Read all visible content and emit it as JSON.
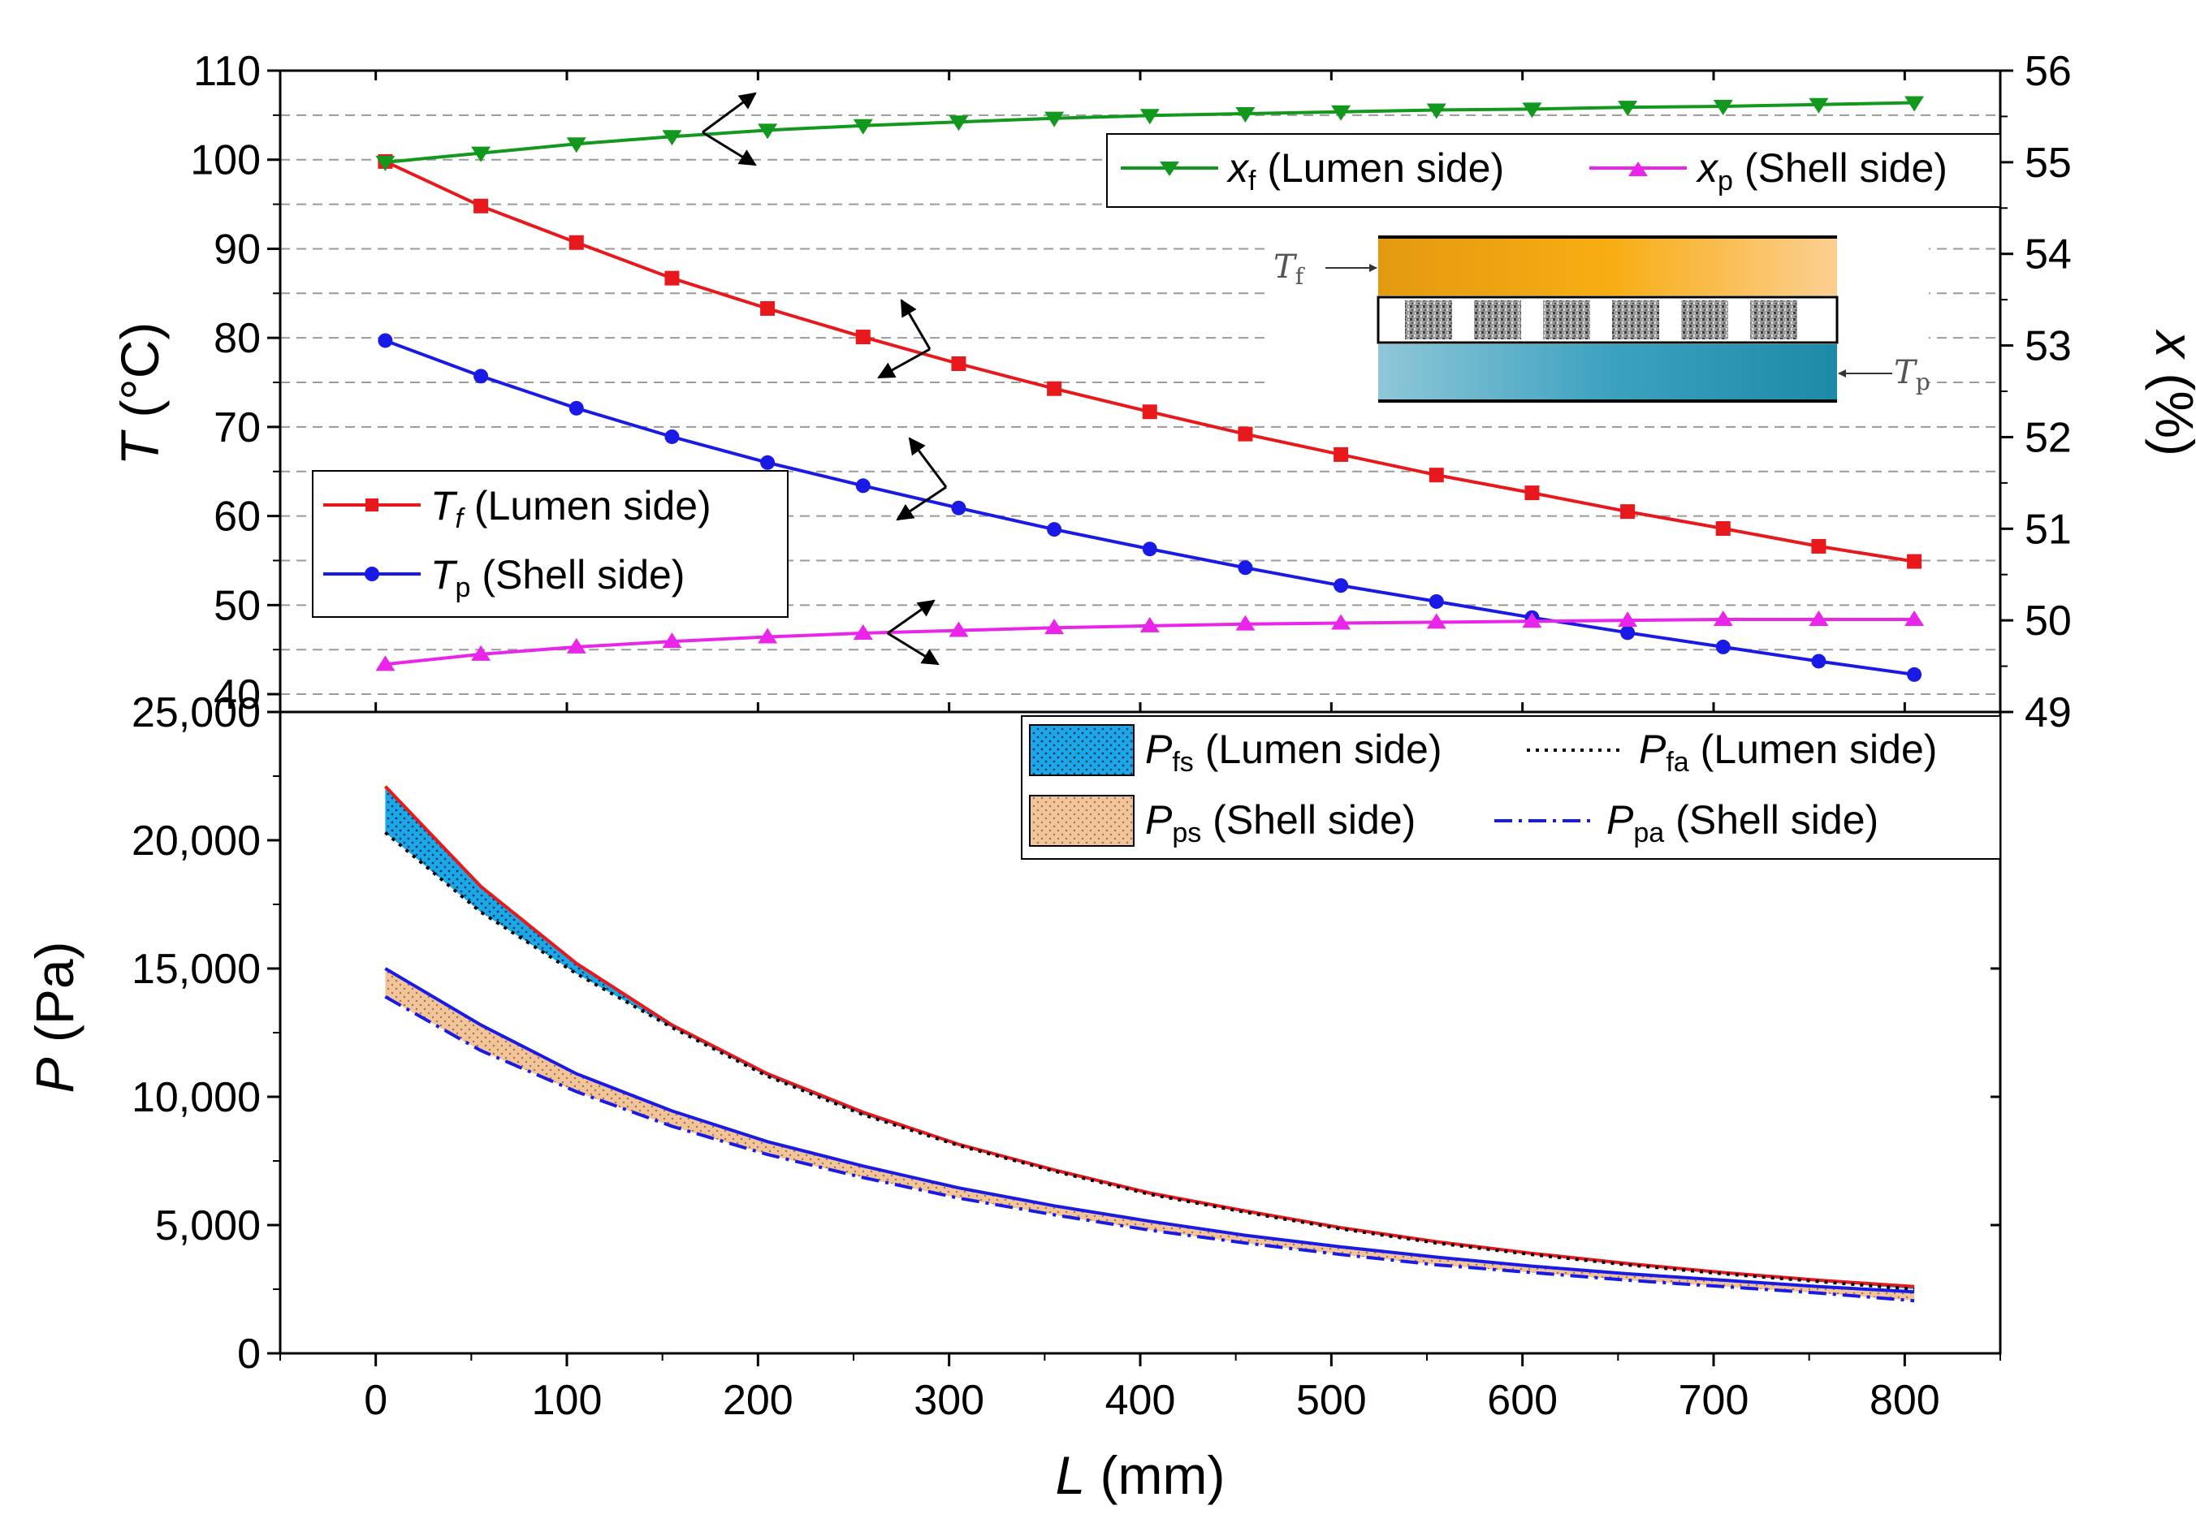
{
  "chart_data": [
    {
      "type": "line",
      "panel": "top",
      "xlabel": "",
      "ylabel": "T (°C)",
      "ylabel_italic": "T",
      "ylabel_rest": " (°C)",
      "ylim": [
        38,
        110
      ],
      "y_ticks": [
        40,
        50,
        60,
        70,
        80,
        90,
        100,
        110
      ],
      "y2label": "x (%)",
      "y2label_italic": "x",
      "y2label_rest": " (%)",
      "y2lim": [
        49,
        56
      ],
      "y2_ticks": [
        49,
        50,
        51,
        52,
        53,
        54,
        55,
        56
      ],
      "x": [
        5,
        55,
        105,
        155,
        205,
        255,
        305,
        355,
        405,
        455,
        505,
        555,
        605,
        655,
        705,
        755,
        805
      ],
      "grid": "dashed horizontal",
      "series": [
        {
          "name": "Tf (Lumen side)",
          "axis": "left",
          "color": "#e8191c",
          "marker": "square",
          "values": [
            99.8,
            94.8,
            90.7,
            86.7,
            83.3,
            80.1,
            77.1,
            74.3,
            71.7,
            69.2,
            66.9,
            64.6,
            62.6,
            60.5,
            58.6,
            56.6,
            54.9
          ]
        },
        {
          "name": "Tp (Shell side)",
          "axis": "left",
          "color": "#1a1ae6",
          "marker": "circle",
          "values": [
            79.7,
            75.7,
            72.1,
            68.9,
            66.0,
            63.4,
            60.9,
            58.5,
            56.3,
            54.2,
            52.2,
            50.4,
            48.6,
            46.9,
            45.3,
            43.7,
            42.2
          ]
        },
        {
          "name": "xf (Lumen side)",
          "axis": "right",
          "color": "#11981d",
          "marker": "triangle-down",
          "values": [
            55.0,
            55.1,
            55.2,
            55.28,
            55.35,
            55.4,
            55.44,
            55.48,
            55.51,
            55.53,
            55.55,
            55.57,
            55.58,
            55.6,
            55.61,
            55.63,
            55.65
          ]
        },
        {
          "name": "xp (Shell side)",
          "axis": "right",
          "color": "#ea25ea",
          "marker": "triangle-up",
          "values": [
            49.52,
            49.63,
            49.71,
            49.77,
            49.82,
            49.86,
            49.89,
            49.92,
            49.94,
            49.96,
            49.97,
            49.98,
            49.99,
            50.0,
            50.01,
            50.01,
            50.01
          ]
        }
      ],
      "legend_left": [
        {
          "sym": "T",
          "sub": "f",
          "label": "  (Lumen side)",
          "color": "#e8191c"
        },
        {
          "sym": "T",
          "sub": "p",
          "label": " (Shell side)",
          "color": "#1a1ae6"
        }
      ],
      "legend_right": [
        {
          "sym": "x",
          "sub": "f",
          "label": " (Lumen side)",
          "color": "#11981d"
        },
        {
          "sym": "x",
          "sub": "p",
          "label": " (Shell side)",
          "color": "#ea25ea"
        }
      ],
      "inset_labels": {
        "feed": "T",
        "feed_sub": "f",
        "permeate": "T",
        "permeate_sub": "p"
      }
    },
    {
      "type": "area",
      "panel": "bottom",
      "xlabel": "L (mm)",
      "xlabel_italic": "L",
      "xlabel_rest": " (mm)",
      "ylabel": "P (Pa)",
      "ylabel_italic": "P",
      "ylabel_rest": " (Pa)",
      "xlim": [
        -50,
        850
      ],
      "x_ticks": [
        0,
        100,
        200,
        300,
        400,
        500,
        600,
        700,
        800
      ],
      "ylim": [
        0,
        25000
      ],
      "y_ticks": [
        0,
        5000,
        10000,
        15000,
        20000,
        25000
      ],
      "y_tick_labels": [
        "0",
        "5,000",
        "10,000",
        "15,000",
        "20,000",
        "25,000"
      ],
      "x": [
        5,
        55,
        105,
        155,
        205,
        255,
        305,
        355,
        405,
        455,
        505,
        555,
        605,
        655,
        705,
        755,
        805
      ],
      "series": [
        {
          "name": "Pfs (Lumen side)",
          "color": "#e8191c",
          "fill": "#1ca8e6",
          "style": "solid",
          "values": [
            22100,
            18200,
            15200,
            12800,
            10900,
            9400,
            8150,
            7150,
            6250,
            5550,
            4900,
            4350,
            3900,
            3500,
            3150,
            2850,
            2600
          ]
        },
        {
          "name": "Pfa (Lumen side)",
          "color": "#000000",
          "style": "dotted",
          "values": [
            20300,
            17200,
            14800,
            12700,
            10800,
            9300,
            8100,
            7100,
            6200,
            5500,
            4850,
            4300,
            3850,
            3450,
            3100,
            2800,
            2500
          ]
        },
        {
          "name": "Pps (Shell side)",
          "color": "#1a1ae6",
          "fill": "#f2c49a",
          "style": "solid",
          "values": [
            15000,
            12800,
            10900,
            9450,
            8250,
            7300,
            6450,
            5750,
            5150,
            4600,
            4150,
            3750,
            3400,
            3100,
            2850,
            2600,
            2400
          ]
        },
        {
          "name": "Ppa (Shell side)",
          "color": "#1a1ae6",
          "style": "dashdot",
          "values": [
            13900,
            11800,
            10200,
            8850,
            7750,
            6850,
            6050,
            5400,
            4800,
            4300,
            3850,
            3450,
            3150,
            2850,
            2600,
            2350,
            2050
          ]
        }
      ],
      "legend": [
        {
          "sym": "P",
          "sub": "fs",
          "label": " (Lumen side)",
          "kind": "blue-fill"
        },
        {
          "sym": "P",
          "sub": "fa",
          "label": " (Lumen side)",
          "kind": "dotted"
        },
        {
          "sym": "P",
          "sub": "ps",
          "label": " (Shell side)",
          "kind": "tan-fill"
        },
        {
          "sym": "P",
          "sub": "pa",
          "label": " (Shell side)",
          "kind": "dashdot"
        }
      ]
    }
  ]
}
